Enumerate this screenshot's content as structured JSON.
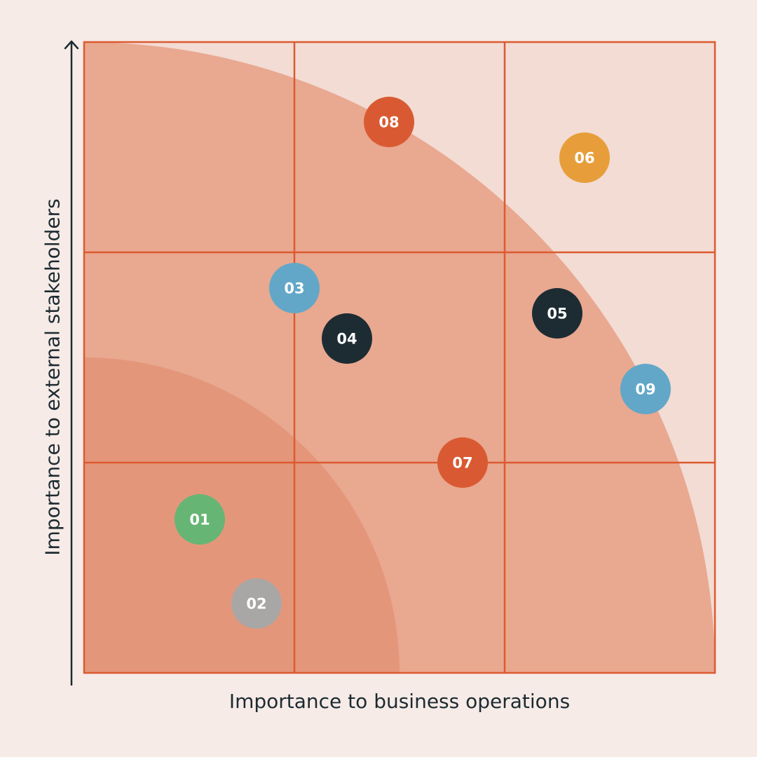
{
  "chart_data": {
    "type": "scatter",
    "title": "",
    "xlabel": "Importance to business operations",
    "ylabel": "Importance to external stakeholders",
    "xlim": [
      0,
      3
    ],
    "ylim": [
      0,
      3
    ],
    "grid": true,
    "grid_divisions": 3,
    "points": [
      {
        "label": "01",
        "x": 0.55,
        "y": 0.73,
        "color": "#66b574",
        "text_color": "#ffffff"
      },
      {
        "label": "02",
        "x": 0.82,
        "y": 0.33,
        "color": "#a9a7a5",
        "text_color": "#ffffff"
      },
      {
        "label": "03",
        "x": 1.0,
        "y": 1.83,
        "color": "#62a7c7",
        "text_color": "#ffffff"
      },
      {
        "label": "04",
        "x": 1.25,
        "y": 1.59,
        "color": "#1d2c33",
        "text_color": "#ffffff"
      },
      {
        "label": "05",
        "x": 2.25,
        "y": 1.71,
        "color": "#1d2c33",
        "text_color": "#ffffff"
      },
      {
        "label": "06",
        "x": 2.38,
        "y": 2.45,
        "color": "#e79e3a",
        "text_color": "#ffffff"
      },
      {
        "label": "07",
        "x": 1.8,
        "y": 1.0,
        "color": "#d95a32",
        "text_color": "#ffffff"
      },
      {
        "label": "08",
        "x": 1.45,
        "y": 2.62,
        "color": "#d95a32",
        "text_color": "#ffffff"
      },
      {
        "label": "09",
        "x": 2.67,
        "y": 1.35,
        "color": "#62a7c7",
        "text_color": "#ffffff"
      }
    ],
    "zones": [
      {
        "radius": 3.0,
        "color": "#e9a890"
      },
      {
        "radius": 1.5,
        "color": "#e4967b"
      }
    ],
    "colors": {
      "background": "#f6ebe7",
      "plot_background": "#f2dcd4",
      "grid_line": "#dc5a30",
      "axis": "#1d2a31"
    }
  }
}
